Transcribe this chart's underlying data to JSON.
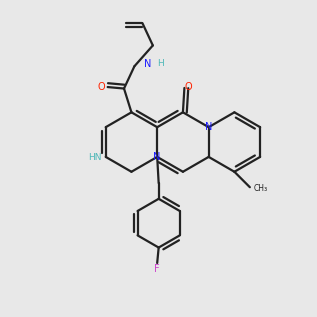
{
  "bg_color": "#e8e8e8",
  "bond_color": "#222222",
  "N_color": "#1a1aff",
  "O_color": "#ff2200",
  "F_color": "#cc44cc",
  "NH_color": "#4db8b8",
  "lw": 1.6
}
